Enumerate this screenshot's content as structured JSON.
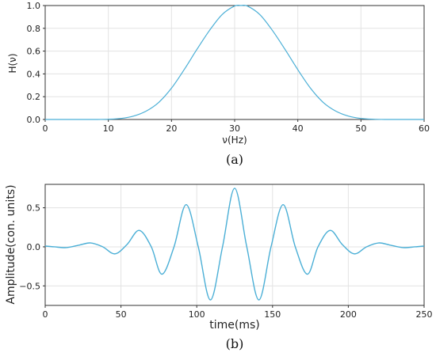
{
  "chart_data": [
    {
      "id": "a",
      "type": "line",
      "caption": "(a)",
      "xlabel": "ν(Hz)",
      "ylabel": "H(ν)",
      "xlim": [
        0,
        60
      ],
      "ylim": [
        0.0,
        1.0
      ],
      "xticks": [
        0,
        10,
        20,
        30,
        40,
        50,
        60
      ],
      "yticks": [
        0.0,
        0.2,
        0.4,
        0.6,
        0.8,
        1.0
      ],
      "xtick_labels": [
        "0",
        "10",
        "20",
        "30",
        "40",
        "50",
        "60"
      ],
      "ytick_labels": [
        "0.0",
        "0.2",
        "0.4",
        "0.6",
        "0.8",
        "1.0"
      ],
      "grid": true,
      "color": "#4bafd6",
      "series": [
        {
          "x": [
            0,
            2,
            4,
            6,
            8,
            10,
            12,
            14,
            16,
            18,
            20,
            22,
            24,
            26,
            28,
            30,
            31,
            32,
            34,
            36,
            38,
            40,
            42,
            44,
            46,
            48,
            50,
            52,
            54,
            56,
            58,
            60
          ],
          "values": [
            0.0,
            0.0,
            0.0,
            0.0,
            0.0,
            0.002,
            0.009,
            0.03,
            0.074,
            0.151,
            0.275,
            0.437,
            0.613,
            0.78,
            0.92,
            0.996,
            1.0,
            0.996,
            0.92,
            0.78,
            0.613,
            0.437,
            0.275,
            0.151,
            0.074,
            0.03,
            0.009,
            0.002,
            0.0,
            0.0,
            0.0,
            0.0
          ]
        }
      ]
    },
    {
      "id": "b",
      "type": "line",
      "caption": "(b)",
      "xlabel": "time(ms)",
      "ylabel": "Amplitude(con. units)",
      "xlim": [
        0,
        250
      ],
      "ylim": [
        -0.75,
        0.8
      ],
      "xticks": [
        0,
        50,
        100,
        150,
        200,
        250
      ],
      "yticks": [
        -0.5,
        0.0,
        0.5
      ],
      "xtick_labels": [
        "0",
        "50",
        "100",
        "150",
        "200",
        "250"
      ],
      "ytick_labels": [
        "−0.5",
        "0.0",
        "0.5"
      ],
      "grid": true,
      "color": "#4bafd6",
      "series": [
        {
          "x": [
            0,
            6,
            14,
            22,
            30,
            38,
            46,
            54,
            62,
            70,
            77,
            85,
            93,
            101,
            109,
            117,
            125,
            133,
            141,
            149,
            157,
            165,
            173,
            180,
            188,
            196,
            204,
            212,
            220,
            228,
            236,
            244,
            250
          ],
          "values": [
            0.01,
            0.0,
            -0.01,
            0.02,
            0.05,
            0.0,
            -0.09,
            0.03,
            0.21,
            0.0,
            -0.35,
            0.0,
            0.54,
            0.0,
            -0.68,
            0.0,
            0.75,
            0.0,
            -0.68,
            0.0,
            0.54,
            0.0,
            -0.35,
            0.0,
            0.21,
            0.03,
            -0.09,
            0.0,
            0.05,
            0.02,
            -0.01,
            0.0,
            0.01
          ]
        }
      ]
    }
  ]
}
